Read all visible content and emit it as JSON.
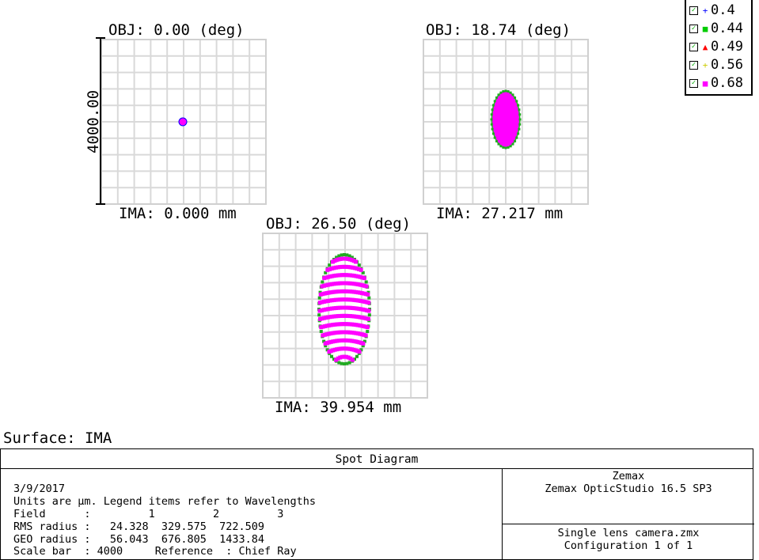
{
  "plots": [
    {
      "obj": "OBJ: 0.00 (deg)",
      "ima": "IMA: 0.000 mm"
    },
    {
      "obj": "OBJ: 18.74 (deg)",
      "ima": "IMA: 27.217 mm"
    },
    {
      "obj": "OBJ: 26.50 (deg)",
      "ima": "IMA: 39.954 mm"
    }
  ],
  "scale_label": "4000.00",
  "legend": [
    {
      "label": "0.4",
      "marker": "+",
      "color": "#0000ff"
    },
    {
      "label": "0.44",
      "marker": "■",
      "color": "#00cc00"
    },
    {
      "label": "0.49",
      "marker": "▲",
      "color": "#ff0000"
    },
    {
      "label": "0.56",
      "marker": "+",
      "color": "#cccc00"
    },
    {
      "label": "0.68",
      "marker": "■",
      "color": "#ff00ff"
    }
  ],
  "surface": "Surface: IMA",
  "info": {
    "title": "Spot Diagram",
    "date": "3/9/2017",
    "units_line": "Units are µm. Legend items refer to Wavelengths",
    "field_line": "Field      :         1         2         3",
    "rms_line": "RMS radius :   24.328  329.575  722.509",
    "geo_line": "GEO radius :   56.043  676.805  1433.84",
    "scale_line": "Scale bar  : 4000     Reference  : Chief Ray",
    "company": "Zemax",
    "product": "Zemax OpticStudio 16.5 SP3",
    "file": "Single lens camera.zmx",
    "config": "Configuration 1 of 1"
  },
  "chart_data": {
    "type": "scatter",
    "title": "Spot Diagram",
    "units": "µm",
    "scale_bar": 4000,
    "fields": [
      {
        "field": 1,
        "obj_deg": 0.0,
        "ima_mm": 0.0,
        "rms_radius": 24.328,
        "geo_radius": 56.043
      },
      {
        "field": 2,
        "obj_deg": 18.74,
        "ima_mm": 27.217,
        "rms_radius": 329.575,
        "geo_radius": 676.805
      },
      {
        "field": 3,
        "obj_deg": 26.5,
        "ima_mm": 39.954,
        "rms_radius": 722.509,
        "geo_radius": 1433.84
      }
    ],
    "series": [
      {
        "name": "0.4",
        "color": "#0000ff",
        "marker": "+"
      },
      {
        "name": "0.44",
        "color": "#00cc00",
        "marker": "square"
      },
      {
        "name": "0.49",
        "color": "#ff0000",
        "marker": "triangle"
      },
      {
        "name": "0.56",
        "color": "#cccc00",
        "marker": "+"
      },
      {
        "name": "0.68",
        "color": "#ff00ff",
        "marker": "square"
      }
    ],
    "grid": true,
    "legend_position": "top-right"
  }
}
